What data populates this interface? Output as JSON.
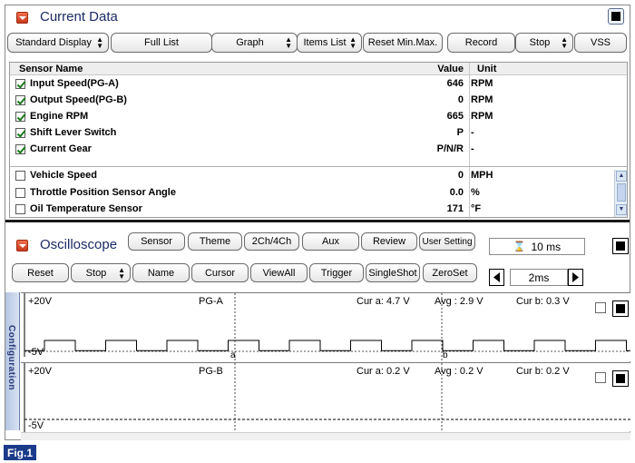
{
  "current_data": {
    "title": "Current Data",
    "toolbar": {
      "standard_display": "Standard Display",
      "full_list": "Full List",
      "graph": "Graph",
      "items_list": "Items List",
      "reset_min_max": "Reset Min.Max.",
      "record": "Record",
      "stop": "Stop",
      "vss": "VSS"
    },
    "table": {
      "headers": {
        "name": "Sensor Name",
        "value": "Value",
        "unit": "Unit"
      },
      "rows": [
        {
          "name": "Input Speed(PG-A)",
          "value": "646",
          "unit": "RPM",
          "checked": true
        },
        {
          "name": "Output Speed(PG-B)",
          "value": "0",
          "unit": "RPM",
          "checked": true
        },
        {
          "name": "Engine RPM",
          "value": "665",
          "unit": "RPM",
          "checked": true
        },
        {
          "name": "Shift Lever Switch",
          "value": "P",
          "unit": "-",
          "checked": true
        },
        {
          "name": "Current Gear",
          "value": "P/N/R",
          "unit": "-",
          "checked": true
        },
        {
          "name": "Vehicle Speed",
          "value": "0",
          "unit": "MPH",
          "checked": false
        },
        {
          "name": "Throttle Position Sensor Angle",
          "value": "0.0",
          "unit": "%",
          "checked": false
        },
        {
          "name": "Oil Temperature Sensor",
          "value": "171",
          "unit": "°F",
          "checked": false
        }
      ]
    }
  },
  "oscilloscope": {
    "title": "Oscilloscope",
    "top_buttons": {
      "sensor": "Sensor",
      "theme": "Theme",
      "ch": "2Ch/4Ch",
      "aux": "Aux",
      "review": "Review",
      "user_setting": "User Setting"
    },
    "time_div": "10 ms",
    "controls": {
      "reset": "Reset",
      "stop": "Stop",
      "name": "Name",
      "cursor": "Cursor",
      "view_all": "ViewAll",
      "trigger": "Trigger",
      "single_shot": "SingleShot",
      "zero_set": "ZeroSet"
    },
    "zoom": "2ms",
    "side_tab": "Configuration",
    "channels": [
      {
        "name": "PG-A",
        "max_label": "+20V",
        "min_label": "-5V",
        "cur_a": "Cur a: 4.7 V",
        "avg": "Avg  : 2.9 V",
        "cur_b": "Cur b: 0.3 V",
        "cursor_a_label": "a",
        "cursor_b_label": "b",
        "waveform": "square",
        "pulse_high": 4.7,
        "pulse_low": 0.3
      },
      {
        "name": "PG-B",
        "max_label": "+20V",
        "min_label": "-5V",
        "cur_a": "Cur a: 0.2 V",
        "avg": "Avg  : 0.2 V",
        "cur_b": "Cur b: 0.2 V",
        "waveform": "flat",
        "level": 0.2
      }
    ]
  },
  "figure_label": "Fig.1"
}
